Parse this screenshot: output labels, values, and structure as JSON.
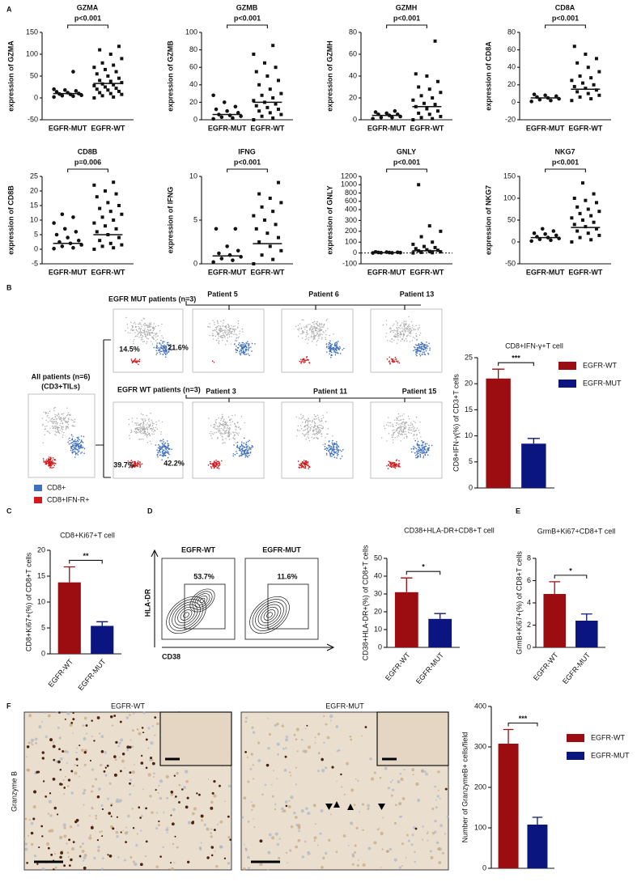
{
  "panel_labels": [
    "A",
    "B",
    "C",
    "D",
    "E",
    "F"
  ],
  "flow_b": {
    "mut_group": "EGFR MUT patients (n=3)",
    "mut_patients": [
      "Patient 5",
      "Patient 6",
      "Patient 13"
    ],
    "mut_percent": [
      "14.5%",
      "21.6%"
    ],
    "wt_group": "EGFR WT patients (n=3)",
    "wt_patients": [
      "Patient 3",
      "Patient 11",
      "Patient 15"
    ],
    "wt_percent": [
      "39.7%",
      "42.2%"
    ],
    "all_group": "All patients (n=6)",
    "all_sub": "(CD3+TILs)",
    "legend": [
      "CD8+",
      "CD8+IFN-R+"
    ]
  },
  "flow_d": {
    "samples": [
      "EGFR-WT",
      "EGFR-MUT"
    ],
    "percents": [
      "53.7%",
      "11.6%"
    ],
    "y_axis": "HLA-DR",
    "x_axis": "CD38"
  },
  "ihc_f": {
    "samples": [
      "EGFR-WT",
      "EGFR-MUT"
    ],
    "stain": "Granzyme B"
  },
  "chart_data": [
    {
      "type": "dotplot",
      "title": "GZMA",
      "pvalue": "p<0.001",
      "ylabel": "expression of GZMA",
      "categories": [
        "EGFR-MUT",
        "EGFR-WT"
      ],
      "groups": [
        [
          2,
          4,
          5,
          6,
          8,
          9,
          10,
          12,
          14,
          16,
          18,
          20,
          60
        ],
        [
          0,
          2,
          5,
          8,
          10,
          12,
          15,
          18,
          20,
          22,
          25,
          28,
          30,
          32,
          35,
          38,
          40,
          45,
          50,
          55,
          60,
          65,
          70,
          75,
          80,
          90,
          100,
          110,
          118
        ]
      ],
      "means": [
        10,
        33
      ],
      "ylim": [
        -50,
        150
      ],
      "yticks": [
        -50,
        0,
        50,
        100,
        150
      ]
    },
    {
      "type": "dotplot",
      "title": "GZMB",
      "pvalue": "p<0.001",
      "ylabel": "expression of GZMB",
      "categories": [
        "EGFR-MUT",
        "EGFR-WT"
      ],
      "groups": [
        [
          1,
          2,
          3,
          4,
          5,
          6,
          8,
          10,
          12,
          15,
          20,
          28
        ],
        [
          0,
          2,
          4,
          6,
          8,
          10,
          12,
          14,
          16,
          18,
          20,
          22,
          25,
          28,
          30,
          35,
          40,
          45,
          50,
          55,
          60,
          65,
          75,
          85
        ]
      ],
      "means": [
        6,
        20
      ],
      "ylim": [
        0,
        100
      ],
      "yticks": [
        0,
        20,
        40,
        60,
        80,
        100
      ]
    },
    {
      "type": "dotplot",
      "title": "GZMH",
      "pvalue": "p<0.001",
      "ylabel": "expression of GZMH",
      "categories": [
        "EGFR-MUT",
        "EGFR-WT"
      ],
      "groups": [
        [
          1,
          2,
          2,
          3,
          4,
          5,
          5,
          6,
          7,
          8
        ],
        [
          0,
          1,
          2,
          3,
          5,
          6,
          8,
          10,
          12,
          14,
          15,
          18,
          20,
          22,
          25,
          28,
          30,
          35,
          40,
          42,
          72
        ]
      ],
      "means": [
        4,
        12
      ],
      "ylim": [
        0,
        80
      ],
      "yticks": [
        0,
        20,
        40,
        60,
        80
      ]
    },
    {
      "type": "dotplot",
      "title": "CD8A",
      "pvalue": "p<0.001",
      "ylabel": "expression of CD8A",
      "categories": [
        "EGFR-MUT",
        "EGFR-WT"
      ],
      "groups": [
        [
          1,
          2,
          3,
          4,
          5,
          6,
          7,
          8,
          9
        ],
        [
          2,
          4,
          6,
          8,
          10,
          12,
          14,
          16,
          18,
          20,
          22,
          25,
          28,
          30,
          35,
          40,
          45,
          50,
          55,
          64
        ]
      ],
      "means": [
        5,
        15
      ],
      "ylim": [
        -20,
        80
      ],
      "yticks": [
        -20,
        0,
        20,
        40,
        60,
        80
      ]
    },
    {
      "type": "dotplot",
      "title": "CD8B",
      "pvalue": "p=0.006",
      "ylabel": "expression of CD8B",
      "categories": [
        "EGFR-MUT",
        "EGFR-WT"
      ],
      "groups": [
        [
          0.2,
          0.5,
          1,
          1.5,
          2,
          2.5,
          3,
          4,
          5,
          6,
          7,
          9,
          11,
          12
        ],
        [
          0,
          0.5,
          1,
          1.5,
          2,
          3,
          4,
          5,
          6,
          7,
          8,
          9,
          10,
          11,
          12,
          13,
          14,
          15,
          16,
          18,
          19,
          20,
          22,
          23
        ]
      ],
      "means": [
        2,
        5
      ],
      "ylim": [
        -5,
        25
      ],
      "yticks": [
        -5,
        0,
        5,
        10,
        15,
        20,
        25
      ]
    },
    {
      "type": "dotplot",
      "title": "IFNG",
      "pvalue": "p<0.001",
      "ylabel": "expression of IFNG",
      "categories": [
        "EGFR-MUT",
        "EGFR-WT"
      ],
      "groups": [
        [
          0.2,
          0.4,
          0.6,
          0.8,
          1,
          1.2,
          1.5,
          2,
          4,
          4
        ],
        [
          0,
          0.5,
          1,
          1.5,
          2,
          2.5,
          3,
          3.5,
          4,
          4.5,
          5,
          5.5,
          6,
          6.5,
          7,
          7.5,
          8,
          9.3
        ]
      ],
      "means": [
        0.9,
        2.3
      ],
      "ylim": [
        0,
        10
      ],
      "yticks": [
        0,
        5,
        10
      ]
    },
    {
      "type": "dotplot",
      "title": "GNLY",
      "pvalue": "p<0.001",
      "ylabel": "expression of GNLY",
      "categories": [
        "EGFR-MUT",
        "EGFR-WT"
      ],
      "groups": [
        [
          0,
          1,
          2,
          3,
          4,
          5,
          6,
          8,
          10
        ],
        [
          0,
          2,
          5,
          10,
          15,
          20,
          25,
          30,
          40,
          50,
          60,
          80,
          100,
          150,
          200,
          250,
          1000
        ]
      ],
      "means": [
        3,
        20
      ],
      "ylim": [
        -100,
        1200
      ],
      "ybreak": 400,
      "zero_line": true,
      "yticks": [
        -100,
        0,
        100,
        200,
        300,
        400,
        600,
        800,
        1000,
        1200
      ]
    },
    {
      "type": "dotplot",
      "title": "NKG7",
      "pvalue": "p<0.001",
      "ylabel": "expression of NKG7",
      "categories": [
        "EGFR-MUT",
        "EGFR-WT"
      ],
      "groups": [
        [
          2,
          4,
          6,
          8,
          10,
          12,
          15,
          18,
          20,
          25,
          30
        ],
        [
          0,
          5,
          10,
          15,
          20,
          25,
          30,
          35,
          40,
          45,
          50,
          55,
          60,
          65,
          70,
          75,
          80,
          90,
          95,
          100,
          110,
          135
        ]
      ],
      "means": [
        10,
        33
      ],
      "ylim": [
        -50,
        150
      ],
      "yticks": [
        -50,
        0,
        50,
        100,
        150
      ]
    },
    {
      "type": "bar",
      "title": "CD8+IFN-γ+T cell",
      "ylabel": "CD8+IFN-γ(%) of CD3+T cells",
      "categories": [
        "EGFR-WT",
        "EGFR-MUT"
      ],
      "values": [
        21,
        8.5
      ],
      "errors": [
        1.8,
        1.0
      ],
      "colors": [
        "#9b0d10",
        "#0b1580"
      ],
      "significance": "***",
      "legend": true,
      "ylim": [
        0,
        25
      ],
      "yticks": [
        0,
        5,
        10,
        15,
        20,
        25
      ]
    },
    {
      "type": "bar",
      "title": "CD8+Ki67+T cell",
      "ylabel": "CD8+Ki67+(%) of CD8+T cells",
      "categories": [
        "EGFR-WT",
        "EGFR-MUT"
      ],
      "values": [
        13.8,
        5.4
      ],
      "errors": [
        3.0,
        0.8
      ],
      "colors": [
        "#9b0d10",
        "#0b1580"
      ],
      "significance": "**",
      "legend": false,
      "ylim": [
        0,
        20
      ],
      "yticks": [
        0,
        5,
        10,
        15,
        20
      ]
    },
    {
      "type": "bar",
      "title": "CD38+HLA-DR+CD8+T cell",
      "ylabel": "CD38+HLA-DR+(%) of CD8+T cells",
      "categories": [
        "EGFR-WT",
        "EGFR-MUT"
      ],
      "values": [
        31,
        16
      ],
      "errors": [
        8,
        3
      ],
      "colors": [
        "#9b0d10",
        "#0b1580"
      ],
      "significance": "*",
      "legend": false,
      "ylim": [
        0,
        50
      ],
      "yticks": [
        0,
        10,
        20,
        30,
        40,
        50
      ]
    },
    {
      "type": "bar",
      "title": "GrmB+Ki67+CD8+T cell",
      "ylabel": "GrmB+Ki67+(%) of CD8+T cells",
      "categories": [
        "EGFR-WT",
        "EGFR-MUT"
      ],
      "values": [
        4.8,
        2.4
      ],
      "errors": [
        1.1,
        0.6
      ],
      "colors": [
        "#9b0d10",
        "#0b1580"
      ],
      "significance": "*",
      "legend": false,
      "ylim": [
        0,
        8
      ],
      "yticks": [
        0,
        2,
        4,
        6,
        8
      ]
    },
    {
      "type": "bar",
      "ylabel": "Number of GranzymeB+ cells/field",
      "categories": [
        "EGFR-WT",
        "EGFR-MUT"
      ],
      "values": [
        308,
        108
      ],
      "errors": [
        35,
        18
      ],
      "colors": [
        "#9b0d10",
        "#0b1580"
      ],
      "significance": "***",
      "legend": true,
      "ylim": [
        0,
        400
      ],
      "yticks": [
        0,
        100,
        200,
        300,
        400
      ]
    }
  ]
}
